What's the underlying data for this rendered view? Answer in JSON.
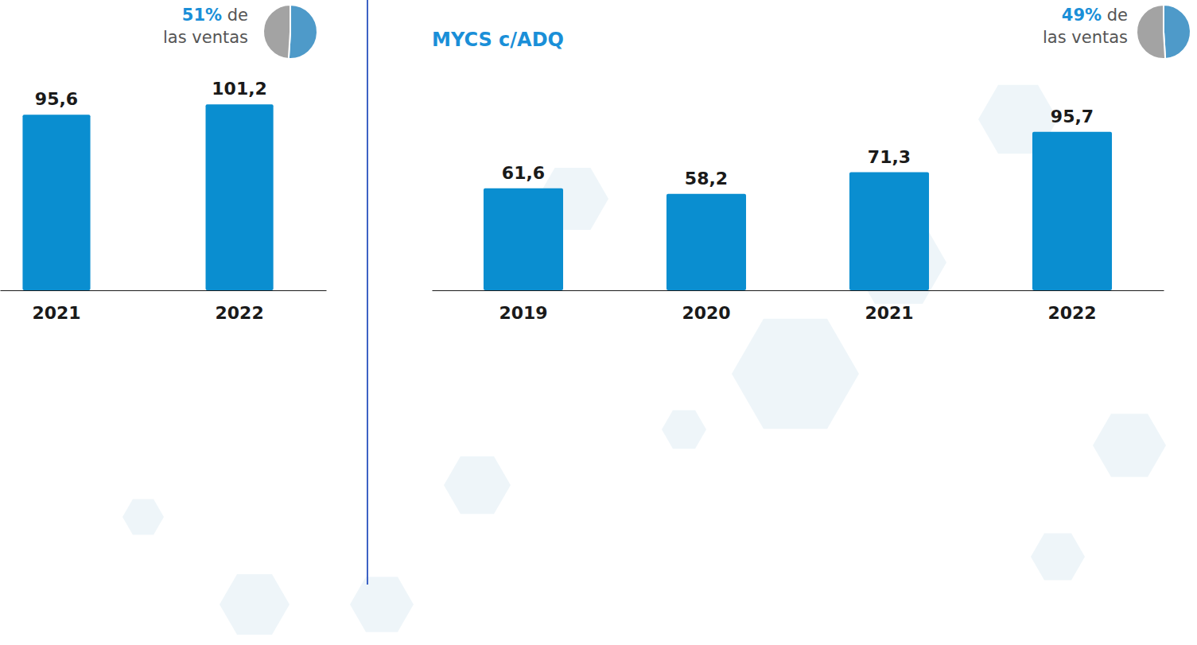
{
  "chart_data": [
    {
      "type": "bar",
      "categories": [
        "2021",
        "2022"
      ],
      "values": [
        95.6,
        101.2
      ],
      "value_labels": [
        "95,6",
        "101,2"
      ],
      "color": "#0a8ed0",
      "ylim": [
        0,
        110
      ],
      "data_labels": true,
      "tick_labels": "x",
      "share": 51,
      "share_label": "51%",
      "share_text": "de las ventas",
      "share_lim": [
        0,
        100
      ]
    },
    {
      "type": "bar",
      "title": "MYCS c/ADQ",
      "categories": [
        "2019",
        "2020",
        "2021",
        "2022"
      ],
      "values": [
        61.6,
        58.2,
        71.3,
        95.7
      ],
      "value_labels": [
        "61,6",
        "58,2",
        "71,3",
        "95,7"
      ],
      "color": "#0a8ed0",
      "ylim": [
        0,
        110
      ],
      "data_labels": true,
      "tick_labels": "x",
      "share": 49,
      "share_label": "49%",
      "share_text": "de las ventas",
      "share_lim": [
        0,
        100
      ]
    }
  ]
}
